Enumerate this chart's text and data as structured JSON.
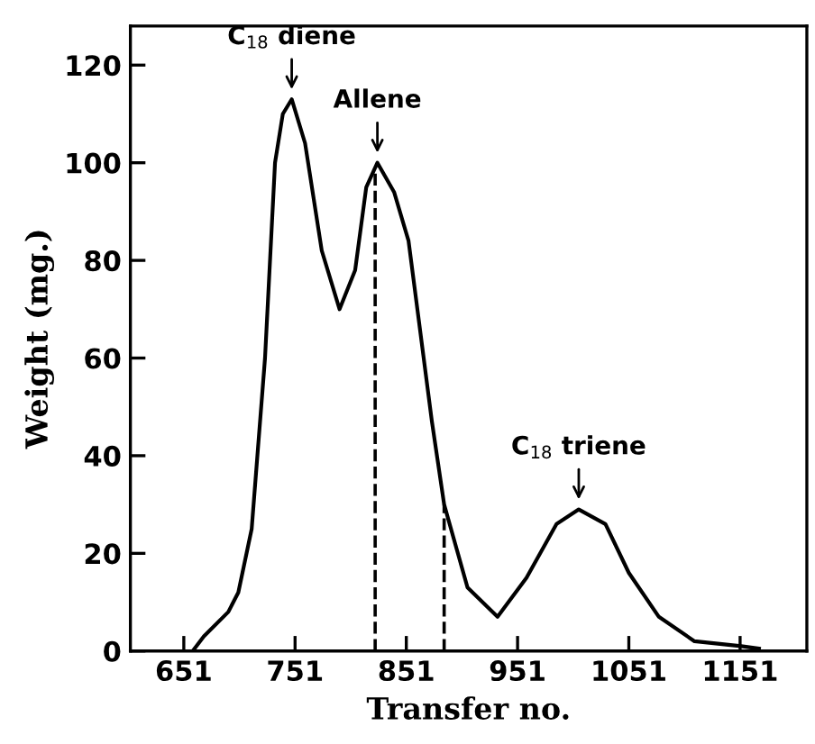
{
  "chart_data": {
    "type": "line",
    "xlabel": "Transfer no.",
    "ylabel": "Weight (mg.)",
    "series": [
      {
        "color": "#000000",
        "x": [
          659,
          669,
          691,
          700,
          712,
          724,
          733,
          740,
          748,
          760,
          775,
          791,
          805,
          815,
          825,
          840,
          853,
          874,
          885,
          906,
          933,
          959,
          986,
          1006,
          1030,
          1051,
          1078,
          1110,
          1152,
          1168
        ],
        "values": [
          0,
          3,
          8,
          12,
          25,
          60,
          100,
          110,
          113,
          104,
          82,
          70,
          78,
          95,
          100,
          94,
          84,
          47,
          30,
          13,
          7,
          15,
          26,
          29,
          26,
          16,
          7,
          2,
          1,
          0.5
        ]
      }
    ],
    "xlim": [
      603,
      1211
    ],
    "ylim": [
      0,
      128
    ],
    "xticks": [
      651,
      751,
      851,
      951,
      1051,
      1151
    ],
    "yticks": [
      0,
      20,
      40,
      60,
      80,
      100,
      120
    ],
    "ref_lines": [
      {
        "axis": "x",
        "value": 823,
        "line_style": "dashed",
        "color": "#000000"
      },
      {
        "axis": "x",
        "value": 885,
        "line_style": "dashed",
        "color": "#000000"
      }
    ],
    "annotations": [
      {
        "text": "C$_{18}$ diene",
        "x": 748,
        "y": 113
      },
      {
        "text": "Allene",
        "x": 825,
        "y": 100
      },
      {
        "text": "C$_{18}$ triene",
        "x": 1006,
        "y": 29
      }
    ],
    "grid": false,
    "legend": false,
    "marker": "none",
    "line_style": "solid"
  }
}
